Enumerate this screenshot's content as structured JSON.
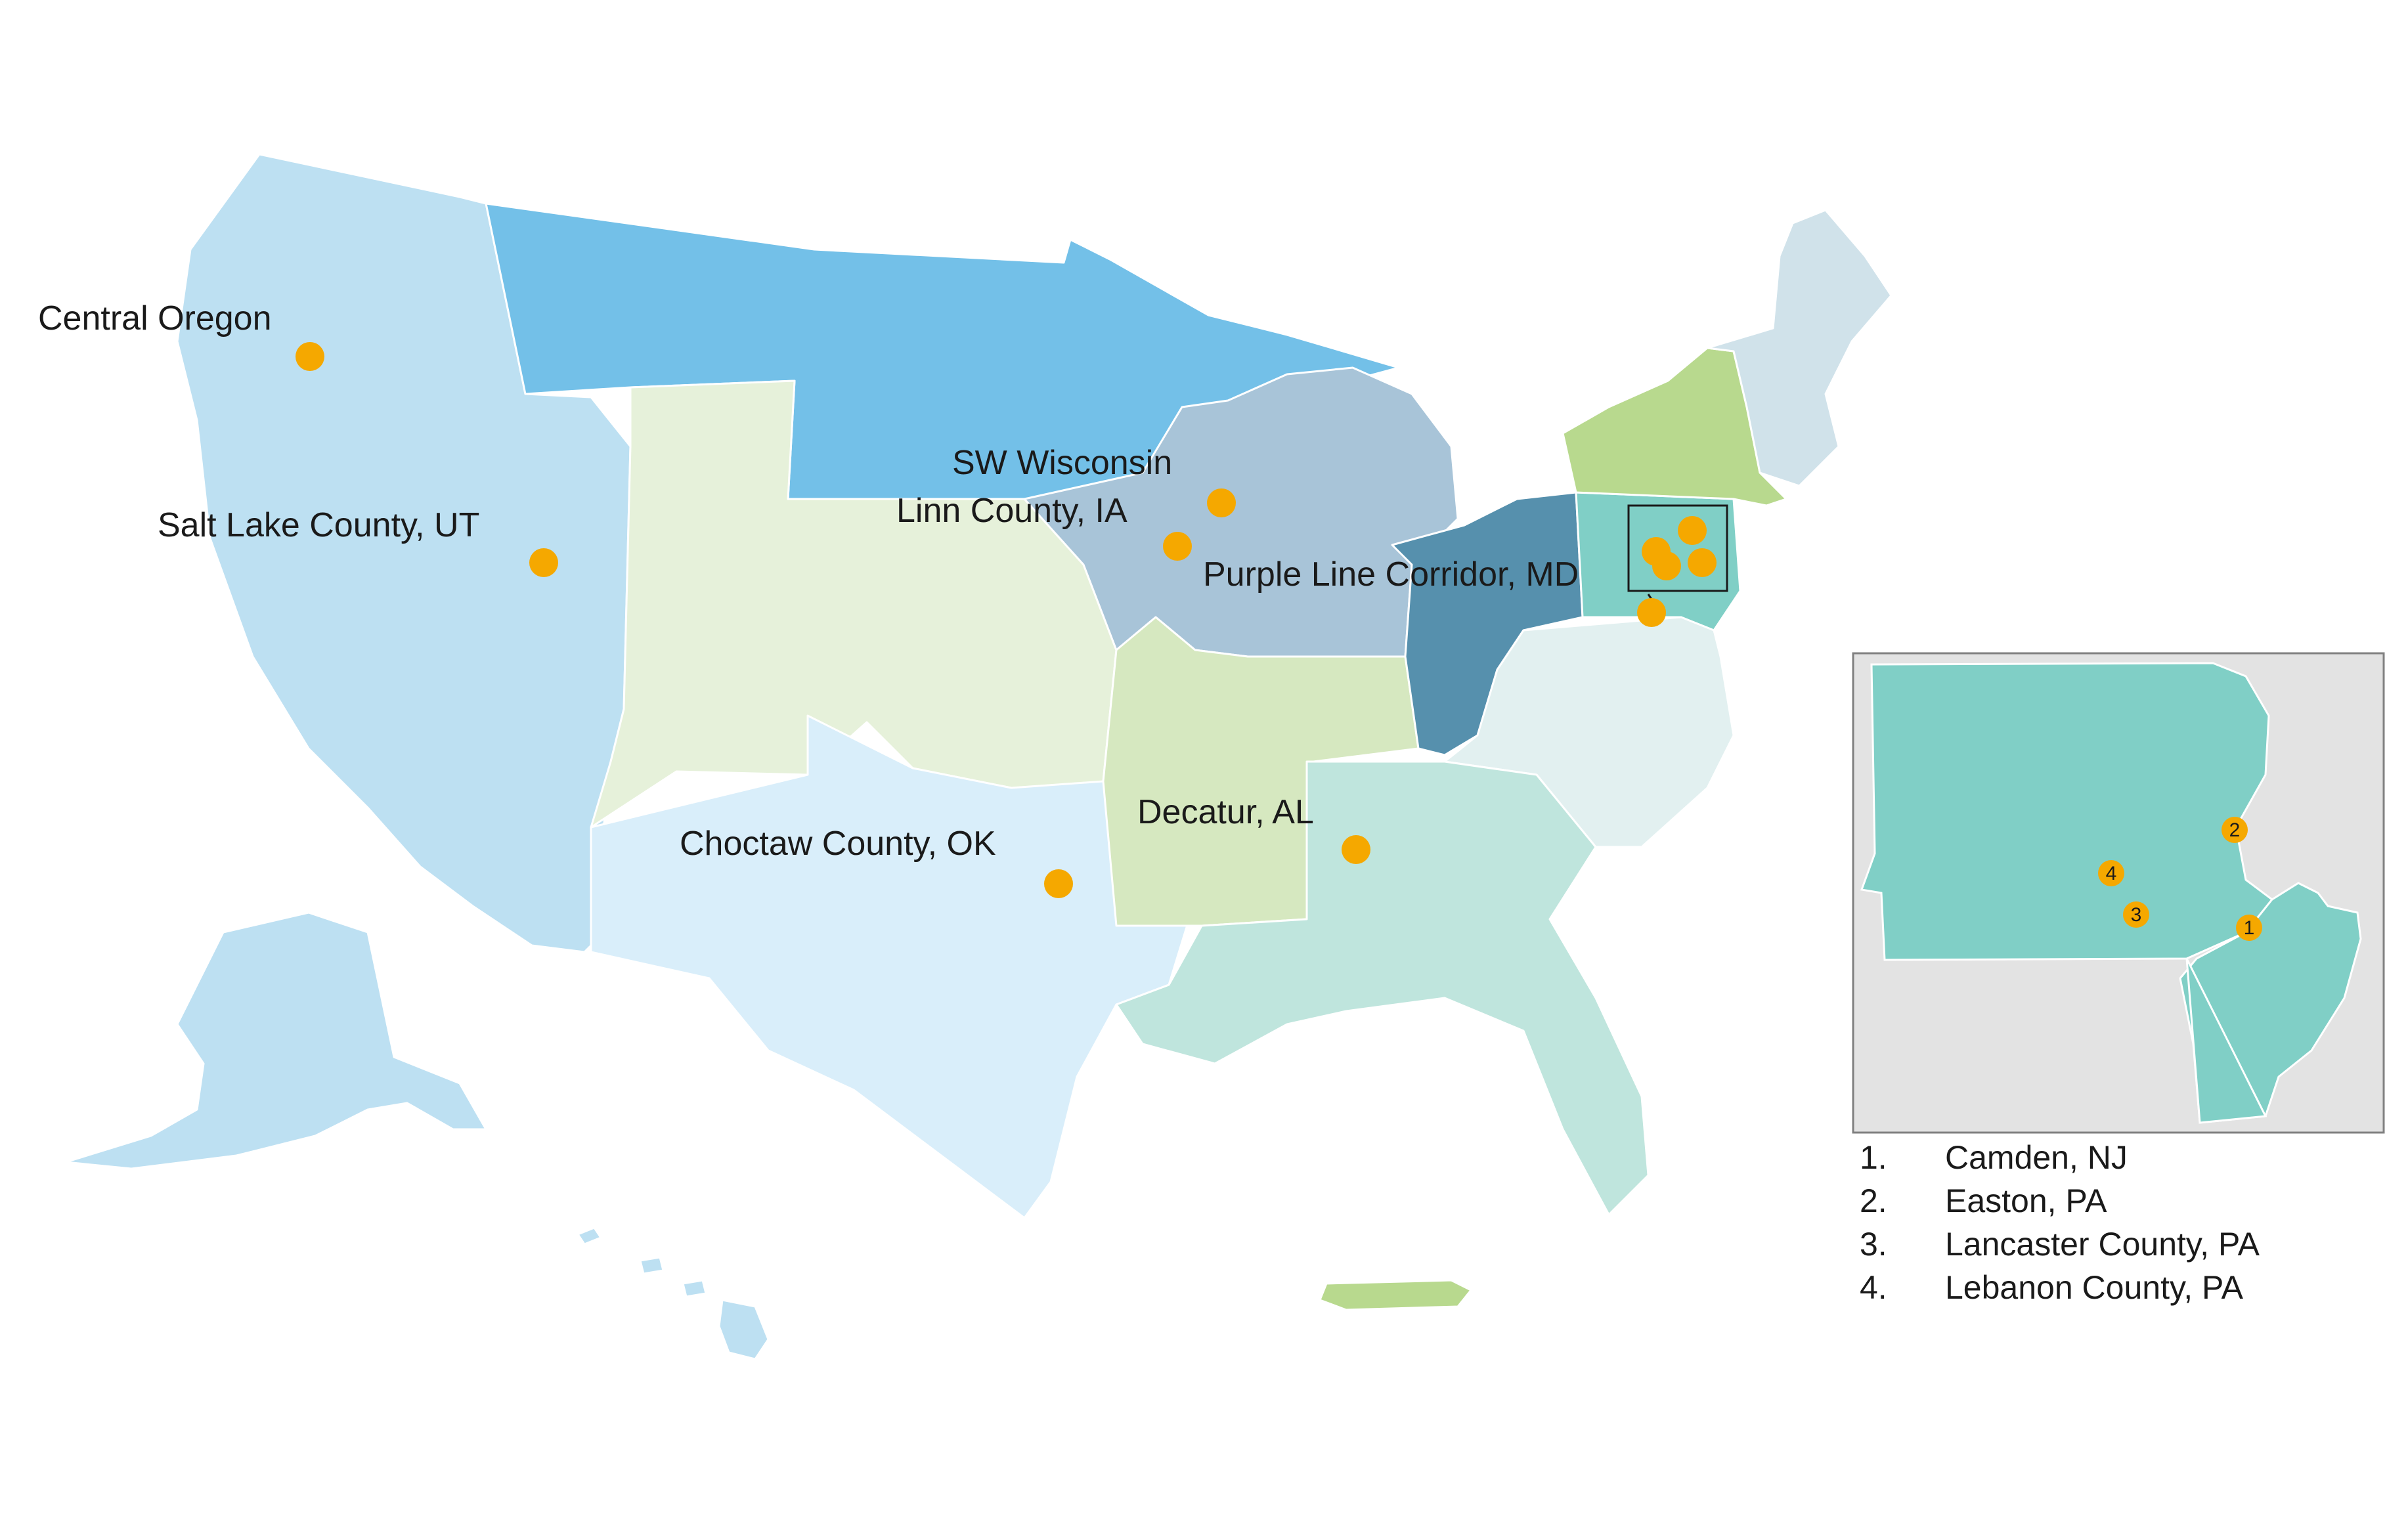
{
  "colors": {
    "west": "#bde0f2",
    "north": "#73c0e8",
    "plains": "#e6f1da",
    "southcentral": "#d6e8c0",
    "southwest": "#d9eefa",
    "midwest": "#a8c4d8",
    "ohio": "#5690ad",
    "midatlantic": "#80cfc6",
    "southeast": "#bfe5dd",
    "virginia": "#e2f0f0",
    "newengland": "#d0e2ea",
    "newyork": "#b8d98e",
    "marker": "#f5a800",
    "inset_background": "#e3e3e3",
    "inset_border": "#808080"
  },
  "sites": [
    {
      "label": "Central Oregon"
    },
    {
      "label": "Salt Lake County, UT"
    },
    {
      "label": "SW Wisconsin"
    },
    {
      "label": "Linn County, IA"
    },
    {
      "label": "Purple Line Corridor, MD"
    },
    {
      "label": "Choctaw County, OK"
    },
    {
      "label": "Decatur, AL"
    }
  ],
  "inset": {
    "markers": [
      "1",
      "2",
      "3",
      "4"
    ]
  },
  "legend": [
    {
      "number": "1.",
      "label": "Camden, NJ"
    },
    {
      "number": "2.",
      "label": "Easton, PA"
    },
    {
      "number": "3.",
      "label": "Lancaster County, PA"
    },
    {
      "number": "4.",
      "label": "Lebanon County, PA"
    }
  ]
}
